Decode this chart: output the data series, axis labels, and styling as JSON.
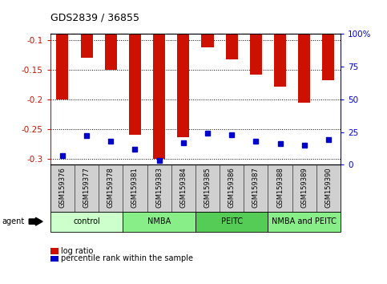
{
  "title": "GDS2839 / 36855",
  "samples": [
    "GSM159376",
    "GSM159377",
    "GSM159378",
    "GSM159381",
    "GSM159383",
    "GSM159384",
    "GSM159385",
    "GSM159386",
    "GSM159387",
    "GSM159388",
    "GSM159389",
    "GSM159390"
  ],
  "log_ratio": [
    -0.2,
    -0.13,
    -0.15,
    -0.26,
    -0.3,
    -0.263,
    -0.112,
    -0.132,
    -0.158,
    -0.178,
    -0.205,
    -0.168
  ],
  "percentile_rank": [
    7,
    22,
    18,
    12,
    3,
    17,
    24,
    23,
    18,
    16,
    15,
    19
  ],
  "groups": [
    {
      "label": "control",
      "color": "#ccffcc",
      "start": 0,
      "end": 3
    },
    {
      "label": "NMBA",
      "color": "#88ee88",
      "start": 3,
      "end": 6
    },
    {
      "label": "PEITC",
      "color": "#55cc55",
      "start": 6,
      "end": 9
    },
    {
      "label": "NMBA and PEITC",
      "color": "#88ee88",
      "start": 9,
      "end": 12
    }
  ],
  "bar_color": "#cc1100",
  "percentile_color": "#0000cc",
  "ylim_left": [
    -0.31,
    -0.09
  ],
  "ylim_right": [
    0,
    100
  ],
  "yticks_left": [
    -0.3,
    -0.25,
    -0.2,
    -0.15,
    -0.1
  ],
  "yticks_right": [
    0,
    25,
    50,
    75,
    100
  ],
  "ylabel_left_color": "#cc1100",
  "ylabel_right_color": "#0000cc",
  "background_color": "#ffffff",
  "plot_bg_color": "#ffffff",
  "legend_items": [
    {
      "label": "log ratio",
      "color": "#cc1100"
    },
    {
      "label": "percentile rank within the sample",
      "color": "#0000cc"
    }
  ],
  "group_colors": [
    "#ccffcc",
    "#88ee88",
    "#55cc55",
    "#88ee88"
  ]
}
